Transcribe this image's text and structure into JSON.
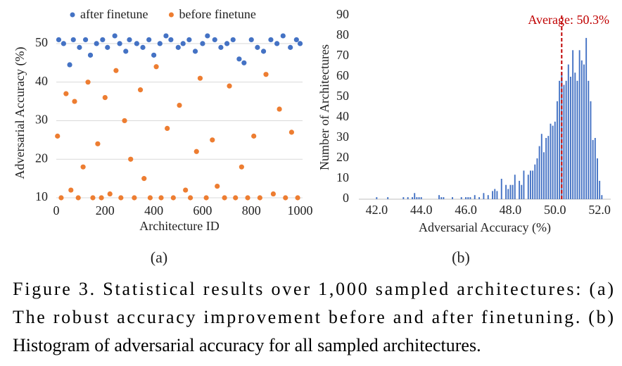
{
  "chart_data": [
    {
      "type": "scatter",
      "panel_label": "(a)",
      "x_label": "Architecture ID",
      "y_label": "Adversarial Accuracy (%)",
      "legend": "top",
      "grid": true,
      "xlim": [
        0,
        1010
      ],
      "xticks": [
        0,
        200,
        400,
        600,
        800,
        1000
      ],
      "ylim": [
        10,
        54
      ],
      "yticks": [
        10,
        20,
        30,
        40,
        50
      ],
      "series": [
        {
          "name": "after finetune",
          "color": "#4472c4",
          "x": [
            10,
            30,
            55,
            70,
            95,
            120,
            140,
            165,
            190,
            210,
            240,
            260,
            285,
            300,
            330,
            355,
            380,
            400,
            425,
            450,
            470,
            500,
            520,
            545,
            570,
            600,
            620,
            650,
            675,
            700,
            725,
            750,
            770,
            800,
            825,
            850,
            880,
            905,
            930,
            960,
            985,
            1000
          ],
          "values": [
            51,
            50,
            44.5,
            51,
            49,
            51,
            47,
            50,
            51,
            49,
            52,
            50,
            48,
            51,
            50,
            49,
            51,
            47,
            50,
            52,
            51,
            49,
            50,
            51,
            48,
            50,
            52,
            51,
            49,
            50,
            51,
            46,
            45,
            51,
            49,
            48,
            51,
            50,
            52,
            49,
            51,
            50
          ]
        },
        {
          "name": "before finetune",
          "color": "#ed7d31",
          "x": [
            5,
            20,
            40,
            60,
            75,
            90,
            110,
            130,
            150,
            170,
            185,
            200,
            220,
            245,
            265,
            280,
            305,
            320,
            345,
            360,
            385,
            410,
            430,
            455,
            480,
            505,
            530,
            550,
            575,
            590,
            615,
            640,
            660,
            690,
            710,
            735,
            760,
            785,
            810,
            835,
            860,
            890,
            915,
            940,
            965,
            990
          ],
          "values": [
            26,
            10,
            37,
            12,
            35,
            10,
            18,
            40,
            10,
            24,
            10,
            36,
            11,
            43,
            10,
            30,
            20,
            10,
            38,
            15,
            10,
            44,
            10,
            28,
            10,
            34,
            12,
            10,
            22,
            41,
            10,
            25,
            13,
            10,
            39,
            10,
            18,
            10,
            26,
            10,
            42,
            11,
            33,
            10,
            27,
            10
          ]
        }
      ]
    },
    {
      "type": "histogram",
      "panel_label": "(b)",
      "x_label": "Adversarial Accuracy (%)",
      "y_label": "Number of Architectures",
      "color": "#4472c4",
      "xlim": [
        41.2,
        52.5
      ],
      "xticks": [
        {
          "value": 42,
          "label": "42.0"
        },
        {
          "value": 44,
          "label": "44.0"
        },
        {
          "value": 46,
          "label": "46.0"
        },
        {
          "value": 48,
          "label": "48.0"
        },
        {
          "value": 50,
          "label": "50.0"
        },
        {
          "value": 52,
          "label": "52.0"
        }
      ],
      "ylim": [
        0,
        90
      ],
      "yticks": [
        0,
        10,
        20,
        30,
        40,
        50,
        60,
        70,
        80,
        90
      ],
      "average": {
        "value": 50.3,
        "label": "Average: 50.3%",
        "color": "#c00000"
      },
      "bins": [
        42,
        42.1,
        42.2,
        42.3,
        42.4,
        42.5,
        42.6,
        42.7,
        42.8,
        42.9,
        43,
        43.1,
        43.2,
        43.3,
        43.4,
        43.5,
        43.6,
        43.7,
        43.8,
        43.9,
        44,
        44.1,
        44.2,
        44.3,
        44.4,
        44.5,
        44.6,
        44.7,
        44.8,
        44.9,
        45,
        45.1,
        45.2,
        45.3,
        45.4,
        45.5,
        45.6,
        45.7,
        45.8,
        45.9,
        46,
        46.1,
        46.2,
        46.3,
        46.4,
        46.5,
        46.6,
        46.7,
        46.8,
        46.9,
        47,
        47.1,
        47.2,
        47.3,
        47.4,
        47.5,
        47.6,
        47.7,
        47.8,
        47.9,
        48,
        48.1,
        48.2,
        48.3,
        48.4,
        48.5,
        48.6,
        48.7,
        48.8,
        48.9,
        49,
        49.1,
        49.2,
        49.3,
        49.4,
        49.5,
        49.6,
        49.7,
        49.8,
        49.9,
        50,
        50.1,
        50.2,
        50.3,
        50.4,
        50.5,
        50.6,
        50.7,
        50.8,
        50.9,
        51,
        51.1,
        51.2,
        51.3,
        51.4,
        51.5,
        51.6,
        51.7,
        51.8,
        51.9,
        52,
        52.1,
        52.2
      ],
      "counts": [
        1,
        0,
        0,
        0,
        0,
        1,
        0,
        0,
        0,
        0,
        0,
        0,
        1,
        0,
        1,
        0,
        1,
        3,
        1,
        1,
        1,
        0,
        0,
        0,
        0,
        0,
        0,
        0,
        2,
        1,
        1,
        0,
        0,
        0,
        1,
        0,
        0,
        0,
        1,
        0,
        1,
        1,
        1,
        0,
        2,
        0,
        1,
        0,
        3,
        0,
        2,
        0,
        4,
        5,
        4,
        0,
        10,
        0,
        7,
        5,
        7,
        7,
        12,
        0,
        9,
        7,
        14,
        0,
        12,
        14,
        14,
        17,
        20,
        26,
        32,
        23,
        30,
        31,
        37,
        36,
        38,
        48,
        58,
        62,
        56,
        58,
        66,
        60,
        73,
        62,
        58,
        73,
        68,
        66,
        79,
        58,
        48,
        29,
        30,
        20,
        9,
        2
      ]
    }
  ],
  "caption": [
    "Figure 3. Statistical results over 1,000 sampled architectures: (a)",
    "The robust accuracy improvement before and after finetuning. (b)",
    "Histogram of adversarial accuracy for all sampled architectures."
  ]
}
